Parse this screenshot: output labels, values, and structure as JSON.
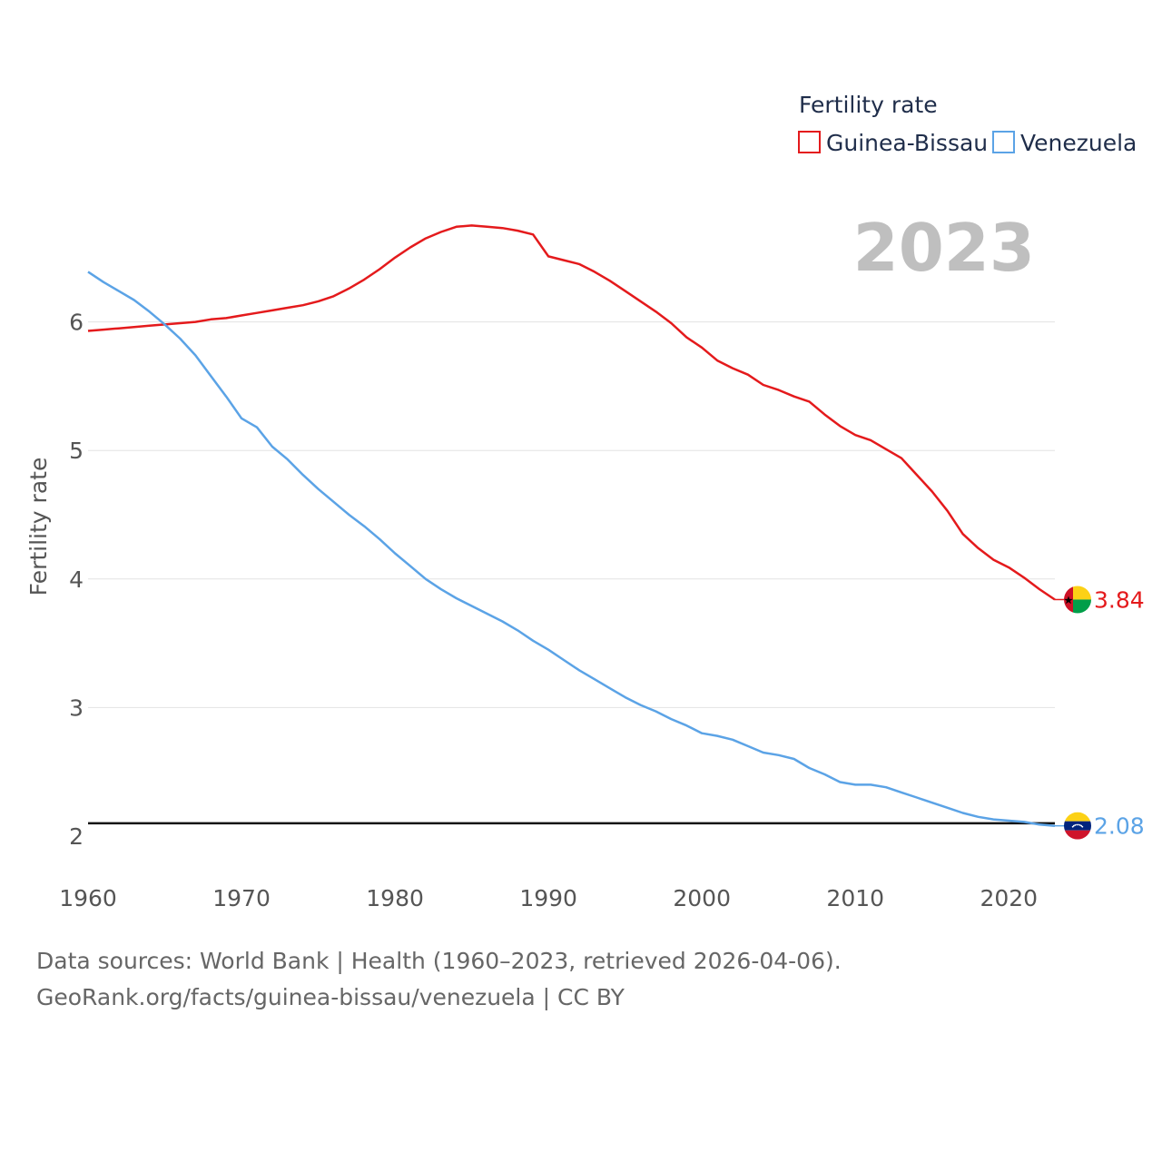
{
  "chart_data": {
    "type": "line",
    "title": "Fertility rate",
    "ylabel": "Fertility rate",
    "xlabel": "",
    "year_label": "2023",
    "xlim": [
      1960,
      2023
    ],
    "ylim": [
      2,
      6.8
    ],
    "xticks": [
      1960,
      1970,
      1980,
      1990,
      2000,
      2010,
      2020
    ],
    "yticks": [
      2,
      3,
      4,
      5,
      6
    ],
    "reference_line": 2.1,
    "grid": true,
    "legend_position": "top-right",
    "series": [
      {
        "name": "Guinea-Bissau",
        "color": "#e41a1c",
        "end_label": "3.84",
        "flag": "guinea-bissau-flag-icon",
        "x": [
          1960,
          1961,
          1962,
          1963,
          1964,
          1965,
          1966,
          1967,
          1968,
          1969,
          1970,
          1971,
          1972,
          1973,
          1974,
          1975,
          1976,
          1977,
          1978,
          1979,
          1980,
          1981,
          1982,
          1983,
          1984,
          1985,
          1986,
          1987,
          1988,
          1989,
          1990,
          1991,
          1992,
          1993,
          1994,
          1995,
          1996,
          1997,
          1998,
          1999,
          2000,
          2001,
          2002,
          2003,
          2004,
          2005,
          2006,
          2007,
          2008,
          2009,
          2010,
          2011,
          2012,
          2013,
          2014,
          2015,
          2016,
          2017,
          2018,
          2019,
          2020,
          2021,
          2022,
          2023
        ],
        "values": [
          5.93,
          5.94,
          5.95,
          5.96,
          5.97,
          5.98,
          5.99,
          6.0,
          6.02,
          6.03,
          6.05,
          6.07,
          6.09,
          6.11,
          6.13,
          6.16,
          6.2,
          6.26,
          6.33,
          6.41,
          6.5,
          6.58,
          6.65,
          6.7,
          6.74,
          6.75,
          6.74,
          6.73,
          6.71,
          6.68,
          6.51,
          6.48,
          6.45,
          6.39,
          6.32,
          6.24,
          6.16,
          6.08,
          5.99,
          5.88,
          5.8,
          5.7,
          5.64,
          5.59,
          5.51,
          5.47,
          5.42,
          5.38,
          5.28,
          5.19,
          5.12,
          5.08,
          5.01,
          4.94,
          4.81,
          4.68,
          4.53,
          4.35,
          4.24,
          4.15,
          4.09,
          4.01,
          3.92,
          3.84
        ]
      },
      {
        "name": "Venezuela",
        "color": "#5ba3e6",
        "end_label": "2.08",
        "flag": "venezuela-flag-icon",
        "x": [
          1960,
          1961,
          1962,
          1963,
          1964,
          1965,
          1966,
          1967,
          1968,
          1969,
          1970,
          1971,
          1972,
          1973,
          1974,
          1975,
          1976,
          1977,
          1978,
          1979,
          1980,
          1981,
          1982,
          1983,
          1984,
          1985,
          1986,
          1987,
          1988,
          1989,
          1990,
          1991,
          1992,
          1993,
          1994,
          1995,
          1996,
          1997,
          1998,
          1999,
          2000,
          2001,
          2002,
          2003,
          2004,
          2005,
          2006,
          2007,
          2008,
          2009,
          2010,
          2011,
          2012,
          2013,
          2014,
          2015,
          2016,
          2017,
          2018,
          2019,
          2020,
          2021,
          2022,
          2023
        ],
        "values": [
          6.39,
          6.31,
          6.24,
          6.17,
          6.08,
          5.98,
          5.87,
          5.74,
          5.58,
          5.42,
          5.25,
          5.18,
          5.03,
          4.93,
          4.81,
          4.7,
          4.6,
          4.5,
          4.41,
          4.31,
          4.2,
          4.1,
          4.0,
          3.92,
          3.85,
          3.79,
          3.73,
          3.67,
          3.6,
          3.52,
          3.45,
          3.37,
          3.29,
          3.22,
          3.15,
          3.08,
          3.02,
          2.97,
          2.91,
          2.86,
          2.8,
          2.78,
          2.75,
          2.7,
          2.65,
          2.63,
          2.6,
          2.53,
          2.48,
          2.42,
          2.4,
          2.4,
          2.38,
          2.34,
          2.3,
          2.26,
          2.22,
          2.18,
          2.15,
          2.13,
          2.12,
          2.11,
          2.09,
          2.08
        ]
      }
    ]
  },
  "footer": {
    "line1": "Data sources: World Bank | Health (1960–2023, retrieved 2026-04-06).",
    "line2": "GeoRank.org/facts/guinea-bissau/venezuela | CC BY"
  }
}
